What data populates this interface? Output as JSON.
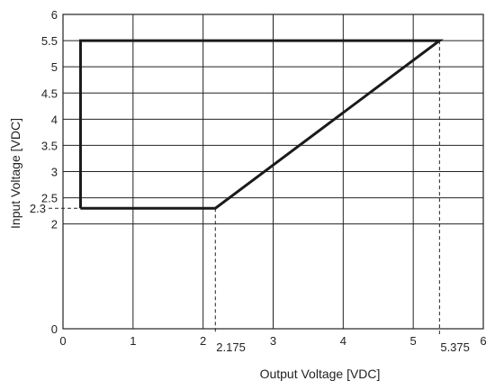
{
  "chart_data": {
    "type": "line",
    "title": "",
    "xlabel": "Output Voltage [VDC]",
    "ylabel": "Input Voltage [VDC]",
    "xlim": [
      0,
      6
    ],
    "ylim": [
      0,
      6
    ],
    "grid": true,
    "x_ticks": [
      0,
      1,
      2,
      3,
      4,
      5,
      6
    ],
    "y_ticks": [
      0,
      2,
      2.5,
      3,
      3.5,
      4,
      4.5,
      5,
      5.5,
      6
    ],
    "x_tick_labels": [
      "0",
      "1",
      "2",
      "3",
      "4",
      "5",
      "6"
    ],
    "y_tick_labels": [
      "0",
      "2",
      "2.5",
      "3",
      "3.5",
      "4",
      "4.5",
      "5",
      "5.5",
      "6"
    ],
    "series": [
      {
        "x": [
          0.25,
          0.25,
          5.375,
          2.175,
          0.25
        ],
        "y": [
          2.3,
          5.5,
          5.5,
          2.3,
          2.3
        ]
      }
    ],
    "annotations": [
      {
        "axis": "y",
        "value": 2.3,
        "label": "2.3"
      },
      {
        "axis": "x",
        "value": 2.175,
        "label": "2.175"
      },
      {
        "axis": "x",
        "value": 5.375,
        "label": "5.375"
      }
    ]
  }
}
